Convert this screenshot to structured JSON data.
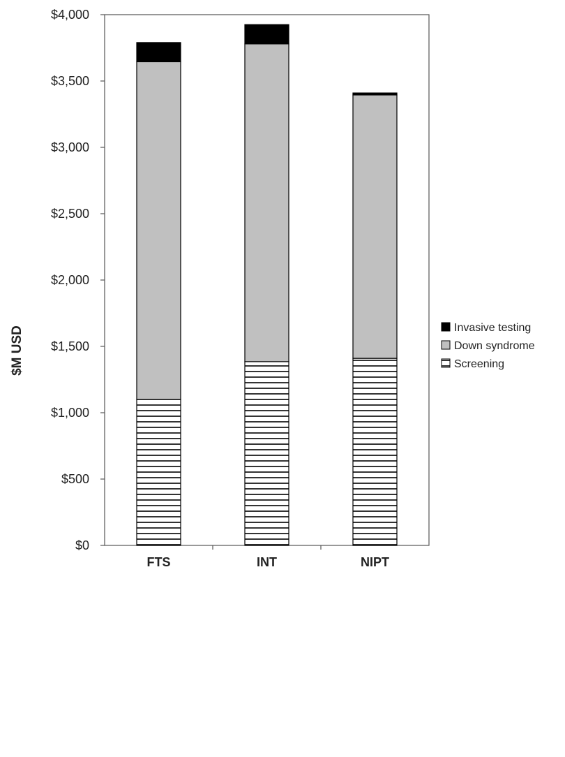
{
  "chart_data": {
    "type": "bar",
    "stacked": true,
    "categories": [
      "FTS",
      "INT",
      "NIPT"
    ],
    "series": [
      {
        "name": "Screening",
        "values": [
          1100,
          1385,
          1410
        ],
        "fill": "hatch-horizontal"
      },
      {
        "name": "Down syndrome",
        "values": [
          2545,
          2395,
          1985
        ],
        "fill": "#c0c0c0"
      },
      {
        "name": "Invasive testing",
        "values": [
          145,
          145,
          15
        ],
        "fill": "#000000"
      }
    ],
    "title": "",
    "xlabel": "",
    "ylabel": "$M USD",
    "ylim": [
      0,
      4000
    ],
    "yticks": [
      0,
      500,
      1000,
      1500,
      2000,
      2500,
      3000,
      3500,
      4000
    ],
    "ytick_labels": [
      "$0",
      "$500",
      "$1,000",
      "$1,500",
      "$2,000",
      "$2,500",
      "$3,000",
      "$3,500",
      "$4,000"
    ],
    "grid": false,
    "legend_position": "right",
    "legend_entries": [
      "Invasive testing",
      "Down syndrome",
      "Screening"
    ]
  }
}
